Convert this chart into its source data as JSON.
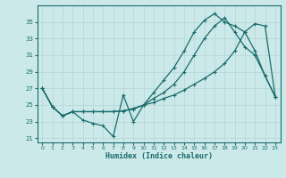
{
  "xlabel": "Humidex (Indice chaleur)",
  "x_ticks": [
    0,
    1,
    2,
    3,
    4,
    5,
    6,
    7,
    8,
    9,
    10,
    11,
    12,
    13,
    14,
    15,
    16,
    17,
    18,
    19,
    20,
    21,
    22,
    23
  ],
  "y_ticks": [
    21,
    23,
    25,
    27,
    29,
    31,
    33,
    35
  ],
  "xlim": [
    -0.5,
    23.5
  ],
  "ylim": [
    20.5,
    37.0
  ],
  "bg_color": "#cce9e9",
  "line_color": "#1a6b6b",
  "grid_color": "#b8d8d8",
  "line_jagged_x": [
    0,
    1,
    2,
    3,
    4,
    5,
    6,
    7,
    8,
    9,
    10,
    11,
    12,
    13,
    14,
    15,
    16,
    17,
    18,
    19,
    20,
    21,
    22,
    23
  ],
  "line_jagged_y": [
    27.0,
    24.8,
    23.7,
    24.2,
    23.2,
    22.8,
    22.5,
    21.2,
    26.2,
    23.0,
    25.0,
    26.5,
    28.0,
    29.5,
    31.5,
    33.8,
    35.2,
    36.0,
    35.0,
    34.5,
    33.8,
    31.5,
    28.5,
    26.0
  ],
  "line_upper_x": [
    0,
    1,
    2,
    3,
    4,
    5,
    6,
    7,
    8,
    9,
    10,
    11,
    12,
    13,
    14,
    15,
    16,
    17,
    18,
    19,
    20,
    21,
    22,
    23
  ],
  "line_upper_y": [
    27.0,
    24.8,
    23.7,
    24.2,
    24.2,
    24.2,
    24.2,
    24.2,
    24.3,
    24.5,
    25.0,
    25.8,
    26.5,
    27.5,
    29.0,
    31.0,
    33.0,
    34.5,
    35.5,
    33.8,
    32.0,
    31.0,
    28.5,
    26.0
  ],
  "line_lower_x": [
    0,
    1,
    2,
    3,
    4,
    5,
    6,
    7,
    8,
    9,
    10,
    11,
    12,
    13,
    14,
    15,
    16,
    17,
    18,
    19,
    20,
    21,
    22,
    23
  ],
  "line_lower_y": [
    27.0,
    24.8,
    23.7,
    24.2,
    24.2,
    24.2,
    24.2,
    24.2,
    24.3,
    24.6,
    25.0,
    25.3,
    25.8,
    26.2,
    26.8,
    27.5,
    28.2,
    29.0,
    30.0,
    31.5,
    33.8,
    34.8,
    34.5,
    26.0
  ]
}
